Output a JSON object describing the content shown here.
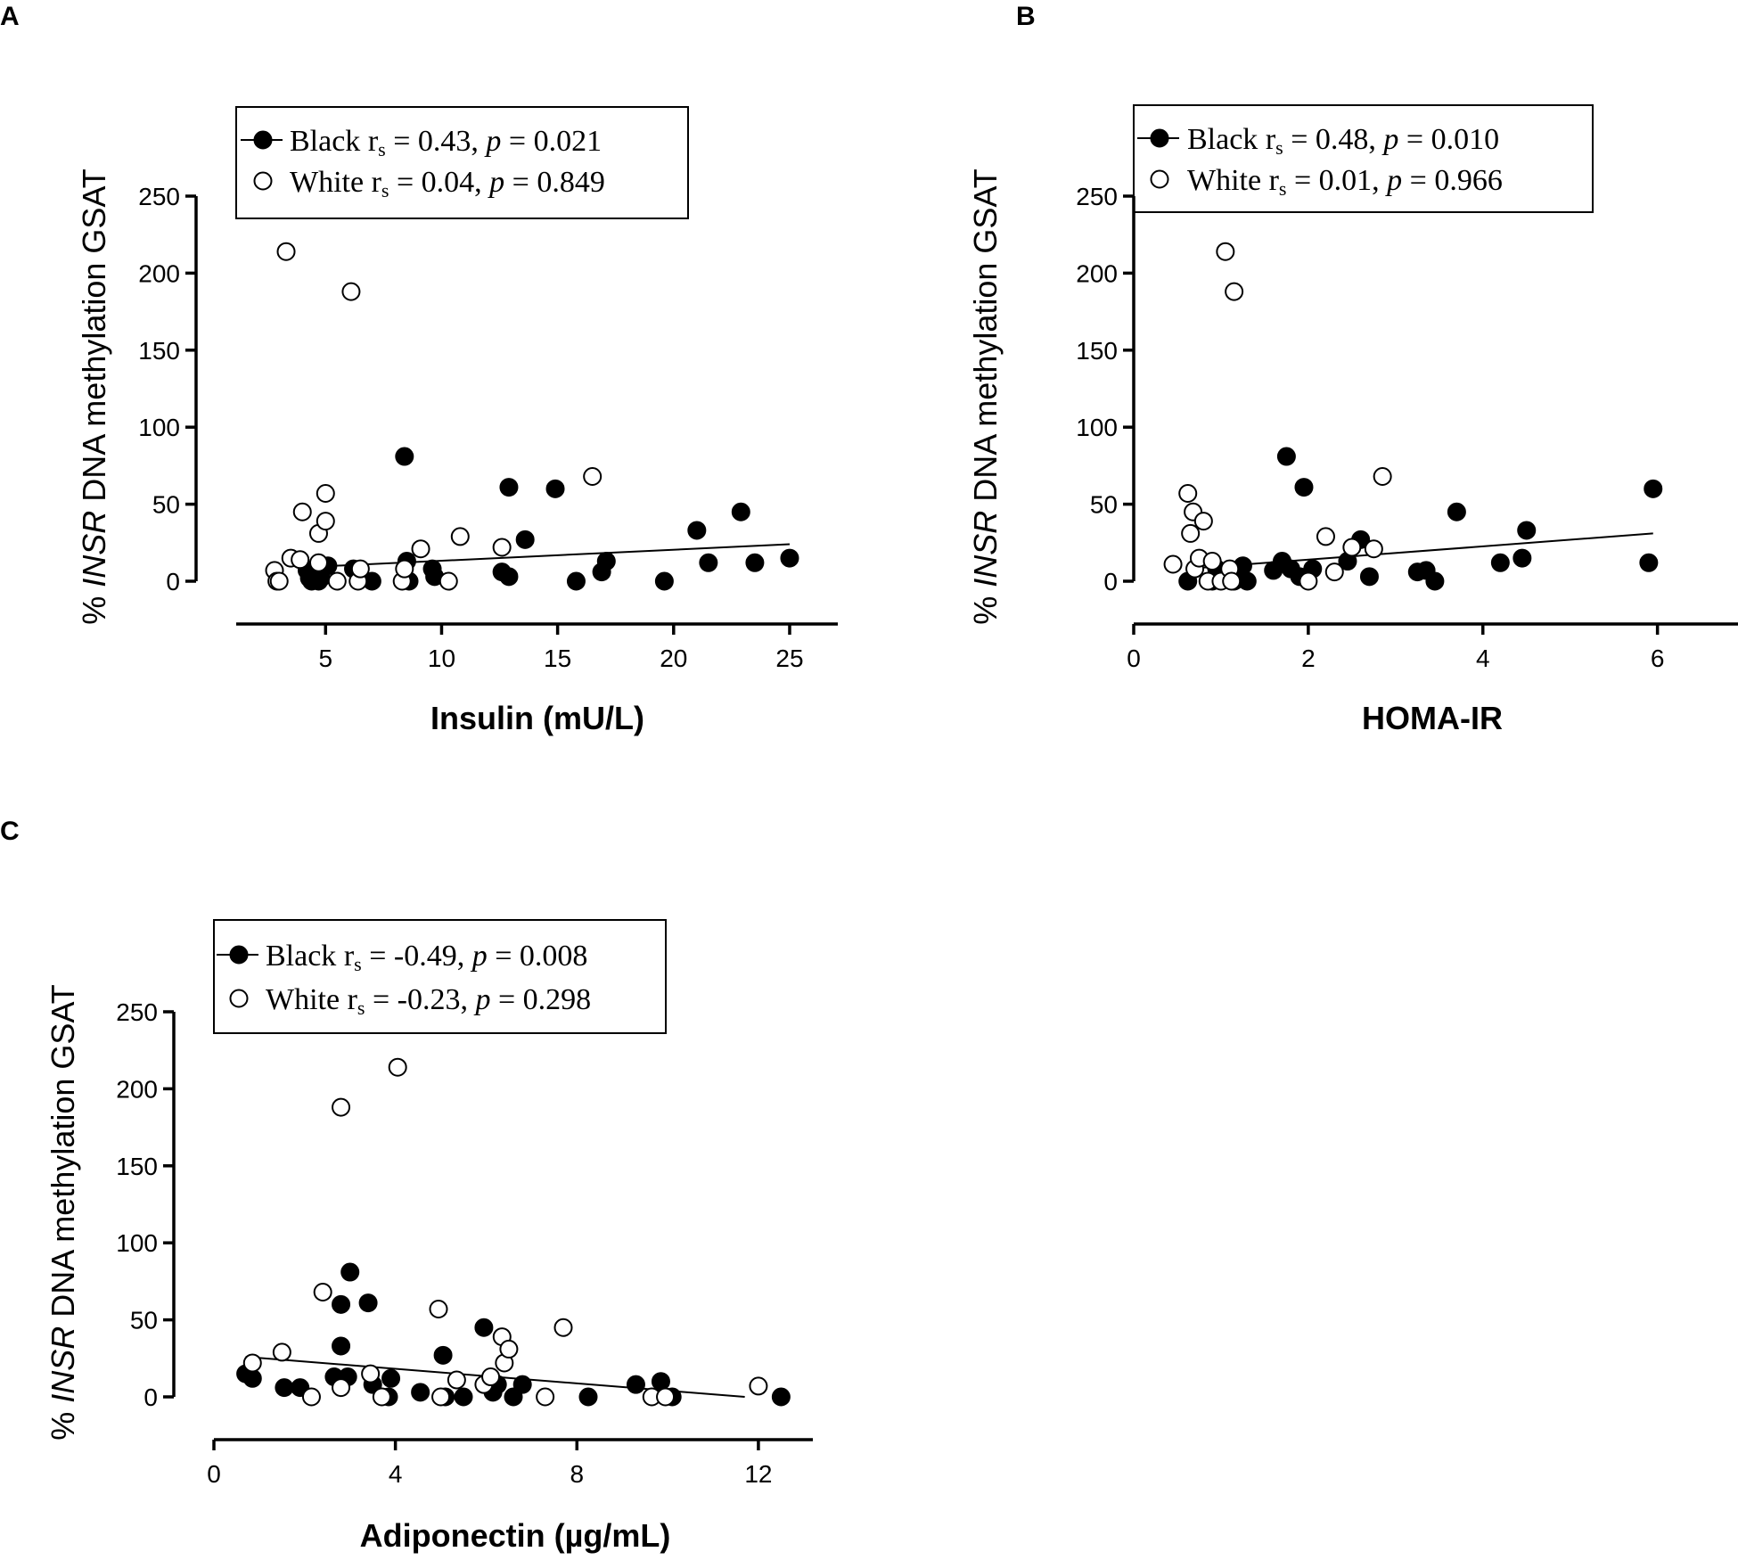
{
  "figure": {
    "ylabel_prefix": "% ",
    "ylabel_gene": "INSR",
    "ylabel_suffix": " DNA methylation GSAT"
  },
  "colors": {
    "black_fill": "#000000",
    "white_fill": "#ffffff",
    "stroke": "#000000"
  },
  "chart_data": [
    {
      "panel": "A",
      "type": "scatter",
      "xlabel": "Insulin (mU/L)",
      "ylabel": "% INSR DNA methylation GSAT",
      "xlim": [
        2.3,
        26
      ],
      "xticks": [
        5,
        10,
        15,
        20,
        25
      ],
      "xtick_labels": [
        "5",
        "10",
        "15",
        "20",
        "25"
      ],
      "ylim": [
        0,
        250
      ],
      "yticks": [
        0,
        50,
        100,
        150,
        200,
        250
      ],
      "ytick_labels": [
        "0",
        "50",
        "100",
        "150",
        "200",
        "250"
      ],
      "legend": [
        {
          "series": "Black",
          "label": "Black",
          "stat": "r",
          "sub": "s",
          "rest": " = 0.43, ",
          "p": "p",
          "pval": " = 0.021"
        },
        {
          "series": "White",
          "label": "White",
          "stat": "r",
          "sub": "s",
          "rest": " = 0.04, ",
          "p": "p",
          "pval": " = 0.849"
        }
      ],
      "trendline": {
        "series": "Black",
        "x": [
          4.0,
          25.0
        ],
        "y": [
          9,
          24
        ]
      },
      "series": [
        {
          "name": "Black",
          "marker": "filled-circle",
          "points": [
            [
              4.2,
              7
            ],
            [
              4.3,
              2
            ],
            [
              4.4,
              0
            ],
            [
              4.5,
              5
            ],
            [
              4.6,
              9
            ],
            [
              4.7,
              0
            ],
            [
              4.8,
              2
            ],
            [
              5.1,
              10
            ],
            [
              6.2,
              8
            ],
            [
              7.0,
              0
            ],
            [
              8.4,
              81
            ],
            [
              8.5,
              13
            ],
            [
              8.6,
              0
            ],
            [
              9.6,
              8
            ],
            [
              9.7,
              3
            ],
            [
              12.6,
              6
            ],
            [
              12.9,
              61
            ],
            [
              12.9,
              3
            ],
            [
              13.6,
              27
            ],
            [
              14.9,
              60
            ],
            [
              15.8,
              0
            ],
            [
              16.9,
              6
            ],
            [
              17.1,
              13
            ],
            [
              19.6,
              0
            ],
            [
              21.0,
              33
            ],
            [
              21.5,
              12
            ],
            [
              22.9,
              45
            ],
            [
              23.5,
              12
            ],
            [
              25.0,
              15
            ]
          ]
        },
        {
          "name": "White",
          "marker": "open-circle",
          "points": [
            [
              2.8,
              7
            ],
            [
              2.9,
              0
            ],
            [
              3.0,
              0
            ],
            [
              3.3,
              214
            ],
            [
              3.5,
              15
            ],
            [
              3.9,
              14
            ],
            [
              4.0,
              45
            ],
            [
              4.7,
              31
            ],
            [
              4.7,
              12
            ],
            [
              5.0,
              57
            ],
            [
              5.0,
              39
            ],
            [
              5.5,
              0
            ],
            [
              6.1,
              188
            ],
            [
              6.4,
              0
            ],
            [
              6.5,
              8
            ],
            [
              8.3,
              0
            ],
            [
              8.4,
              8
            ],
            [
              9.1,
              21
            ],
            [
              10.3,
              0
            ],
            [
              10.8,
              29
            ],
            [
              12.6,
              22
            ],
            [
              16.5,
              68
            ]
          ]
        }
      ]
    },
    {
      "panel": "B",
      "type": "scatter",
      "xlabel": "HOMA-IR",
      "ylabel": "% INSR DNA methylation GSAT",
      "xlim": [
        0,
        6.8
      ],
      "xticks": [
        0,
        2,
        4,
        6
      ],
      "xtick_labels": [
        "0",
        "2",
        "4",
        "6"
      ],
      "ylim": [
        0,
        250
      ],
      "yticks": [
        0,
        50,
        100,
        150,
        200,
        250
      ],
      "ytick_labels": [
        "0",
        "50",
        "100",
        "150",
        "200",
        "250"
      ],
      "legend": [
        {
          "series": "Black",
          "label": "Black",
          "stat": "r",
          "sub": "s",
          "rest": " = 0.48, ",
          "p": "p",
          "pval": " = 0.010"
        },
        {
          "series": "White",
          "label": "White",
          "stat": "r",
          "sub": "s",
          "rest": " = 0.01, ",
          "p": "p",
          "pval": " = 0.966"
        }
      ],
      "trendline": {
        "series": "Black",
        "x": [
          0.6,
          5.95
        ],
        "y": [
          8,
          31
        ]
      },
      "series": [
        {
          "name": "Black",
          "marker": "filled-circle",
          "points": [
            [
              0.62,
              0
            ],
            [
              0.9,
              0
            ],
            [
              0.95,
              8
            ],
            [
              1.1,
              5
            ],
            [
              1.15,
              0
            ],
            [
              1.2,
              3
            ],
            [
              1.25,
              10
            ],
            [
              1.3,
              0
            ],
            [
              1.6,
              7
            ],
            [
              1.7,
              13
            ],
            [
              1.75,
              81
            ],
            [
              1.8,
              8
            ],
            [
              1.9,
              3
            ],
            [
              1.95,
              61
            ],
            [
              2.05,
              8
            ],
            [
              2.45,
              13
            ],
            [
              2.6,
              27
            ],
            [
              2.7,
              3
            ],
            [
              3.25,
              6
            ],
            [
              3.35,
              7
            ],
            [
              3.45,
              0
            ],
            [
              3.7,
              45
            ],
            [
              4.2,
              12
            ],
            [
              4.45,
              15
            ],
            [
              4.5,
              33
            ],
            [
              5.9,
              12
            ],
            [
              5.95,
              60
            ]
          ]
        },
        {
          "name": "White",
          "marker": "open-circle",
          "points": [
            [
              0.45,
              11
            ],
            [
              0.62,
              57
            ],
            [
              0.65,
              31
            ],
            [
              0.68,
              45
            ],
            [
              0.7,
              8
            ],
            [
              0.75,
              15
            ],
            [
              0.8,
              39
            ],
            [
              0.85,
              0
            ],
            [
              0.9,
              13
            ],
            [
              1.0,
              0
            ],
            [
              1.05,
              214
            ],
            [
              1.1,
              8
            ],
            [
              1.12,
              0
            ],
            [
              1.15,
              188
            ],
            [
              2.0,
              0
            ],
            [
              2.2,
              29
            ],
            [
              2.3,
              6
            ],
            [
              2.5,
              22
            ],
            [
              2.75,
              21
            ],
            [
              2.85,
              68
            ]
          ]
        }
      ]
    },
    {
      "panel": "C",
      "type": "scatter",
      "xlabel": "Adiponectin (µg/mL)",
      "ylabel": "% INSR DNA methylation GSAT",
      "xlim": [
        0,
        13.2
      ],
      "xticks": [
        0,
        4,
        8,
        12
      ],
      "xtick_labels": [
        "0",
        "4",
        "8",
        "12"
      ],
      "ylim": [
        0,
        250
      ],
      "yticks": [
        0,
        50,
        100,
        150,
        200,
        250
      ],
      "ytick_labels": [
        "0",
        "50",
        "100",
        "150",
        "200",
        "250"
      ],
      "legend": [
        {
          "series": "Black",
          "label": "Black",
          "stat": "r",
          "sub": "s",
          "rest": " = -0.49, ",
          "p": "p",
          "pval": " = 0.008"
        },
        {
          "series": "White",
          "label": "White",
          "stat": "r",
          "sub": "s",
          "rest": " = -0.23, ",
          "p": "p",
          "pval": " = 0.298"
        }
      ],
      "trendline": {
        "series": "Black",
        "x": [
          0.7,
          11.7
        ],
        "y": [
          26,
          0
        ]
      },
      "series": [
        {
          "name": "Black",
          "marker": "filled-circle",
          "points": [
            [
              0.7,
              15
            ],
            [
              0.85,
              12
            ],
            [
              1.55,
              6
            ],
            [
              1.9,
              6
            ],
            [
              2.65,
              13
            ],
            [
              2.8,
              33
            ],
            [
              2.8,
              60
            ],
            [
              2.95,
              13
            ],
            [
              3.0,
              81
            ],
            [
              3.4,
              61
            ],
            [
              3.5,
              8
            ],
            [
              3.85,
              0
            ],
            [
              3.9,
              12
            ],
            [
              4.55,
              3
            ],
            [
              5.05,
              27
            ],
            [
              5.1,
              0
            ],
            [
              5.5,
              0
            ],
            [
              5.95,
              45
            ],
            [
              6.15,
              3
            ],
            [
              6.25,
              8
            ],
            [
              6.6,
              0
            ],
            [
              6.8,
              8
            ],
            [
              8.25,
              0
            ],
            [
              9.3,
              8
            ],
            [
              9.85,
              10
            ],
            [
              10.1,
              0
            ],
            [
              12.5,
              0
            ]
          ]
        },
        {
          "name": "White",
          "marker": "open-circle",
          "points": [
            [
              0.85,
              22
            ],
            [
              1.5,
              29
            ],
            [
              2.15,
              0
            ],
            [
              2.4,
              68
            ],
            [
              2.8,
              188
            ],
            [
              2.8,
              6
            ],
            [
              3.45,
              15
            ],
            [
              3.7,
              0
            ],
            [
              4.05,
              214
            ],
            [
              4.95,
              57
            ],
            [
              5.35,
              11
            ],
            [
              5.0,
              0
            ],
            [
              5.95,
              8
            ],
            [
              6.1,
              13
            ],
            [
              6.35,
              39
            ],
            [
              6.4,
              22
            ],
            [
              6.5,
              31
            ],
            [
              7.3,
              0
            ],
            [
              7.7,
              45
            ],
            [
              9.65,
              0
            ],
            [
              9.95,
              0
            ],
            [
              12.0,
              7
            ]
          ]
        }
      ]
    }
  ]
}
